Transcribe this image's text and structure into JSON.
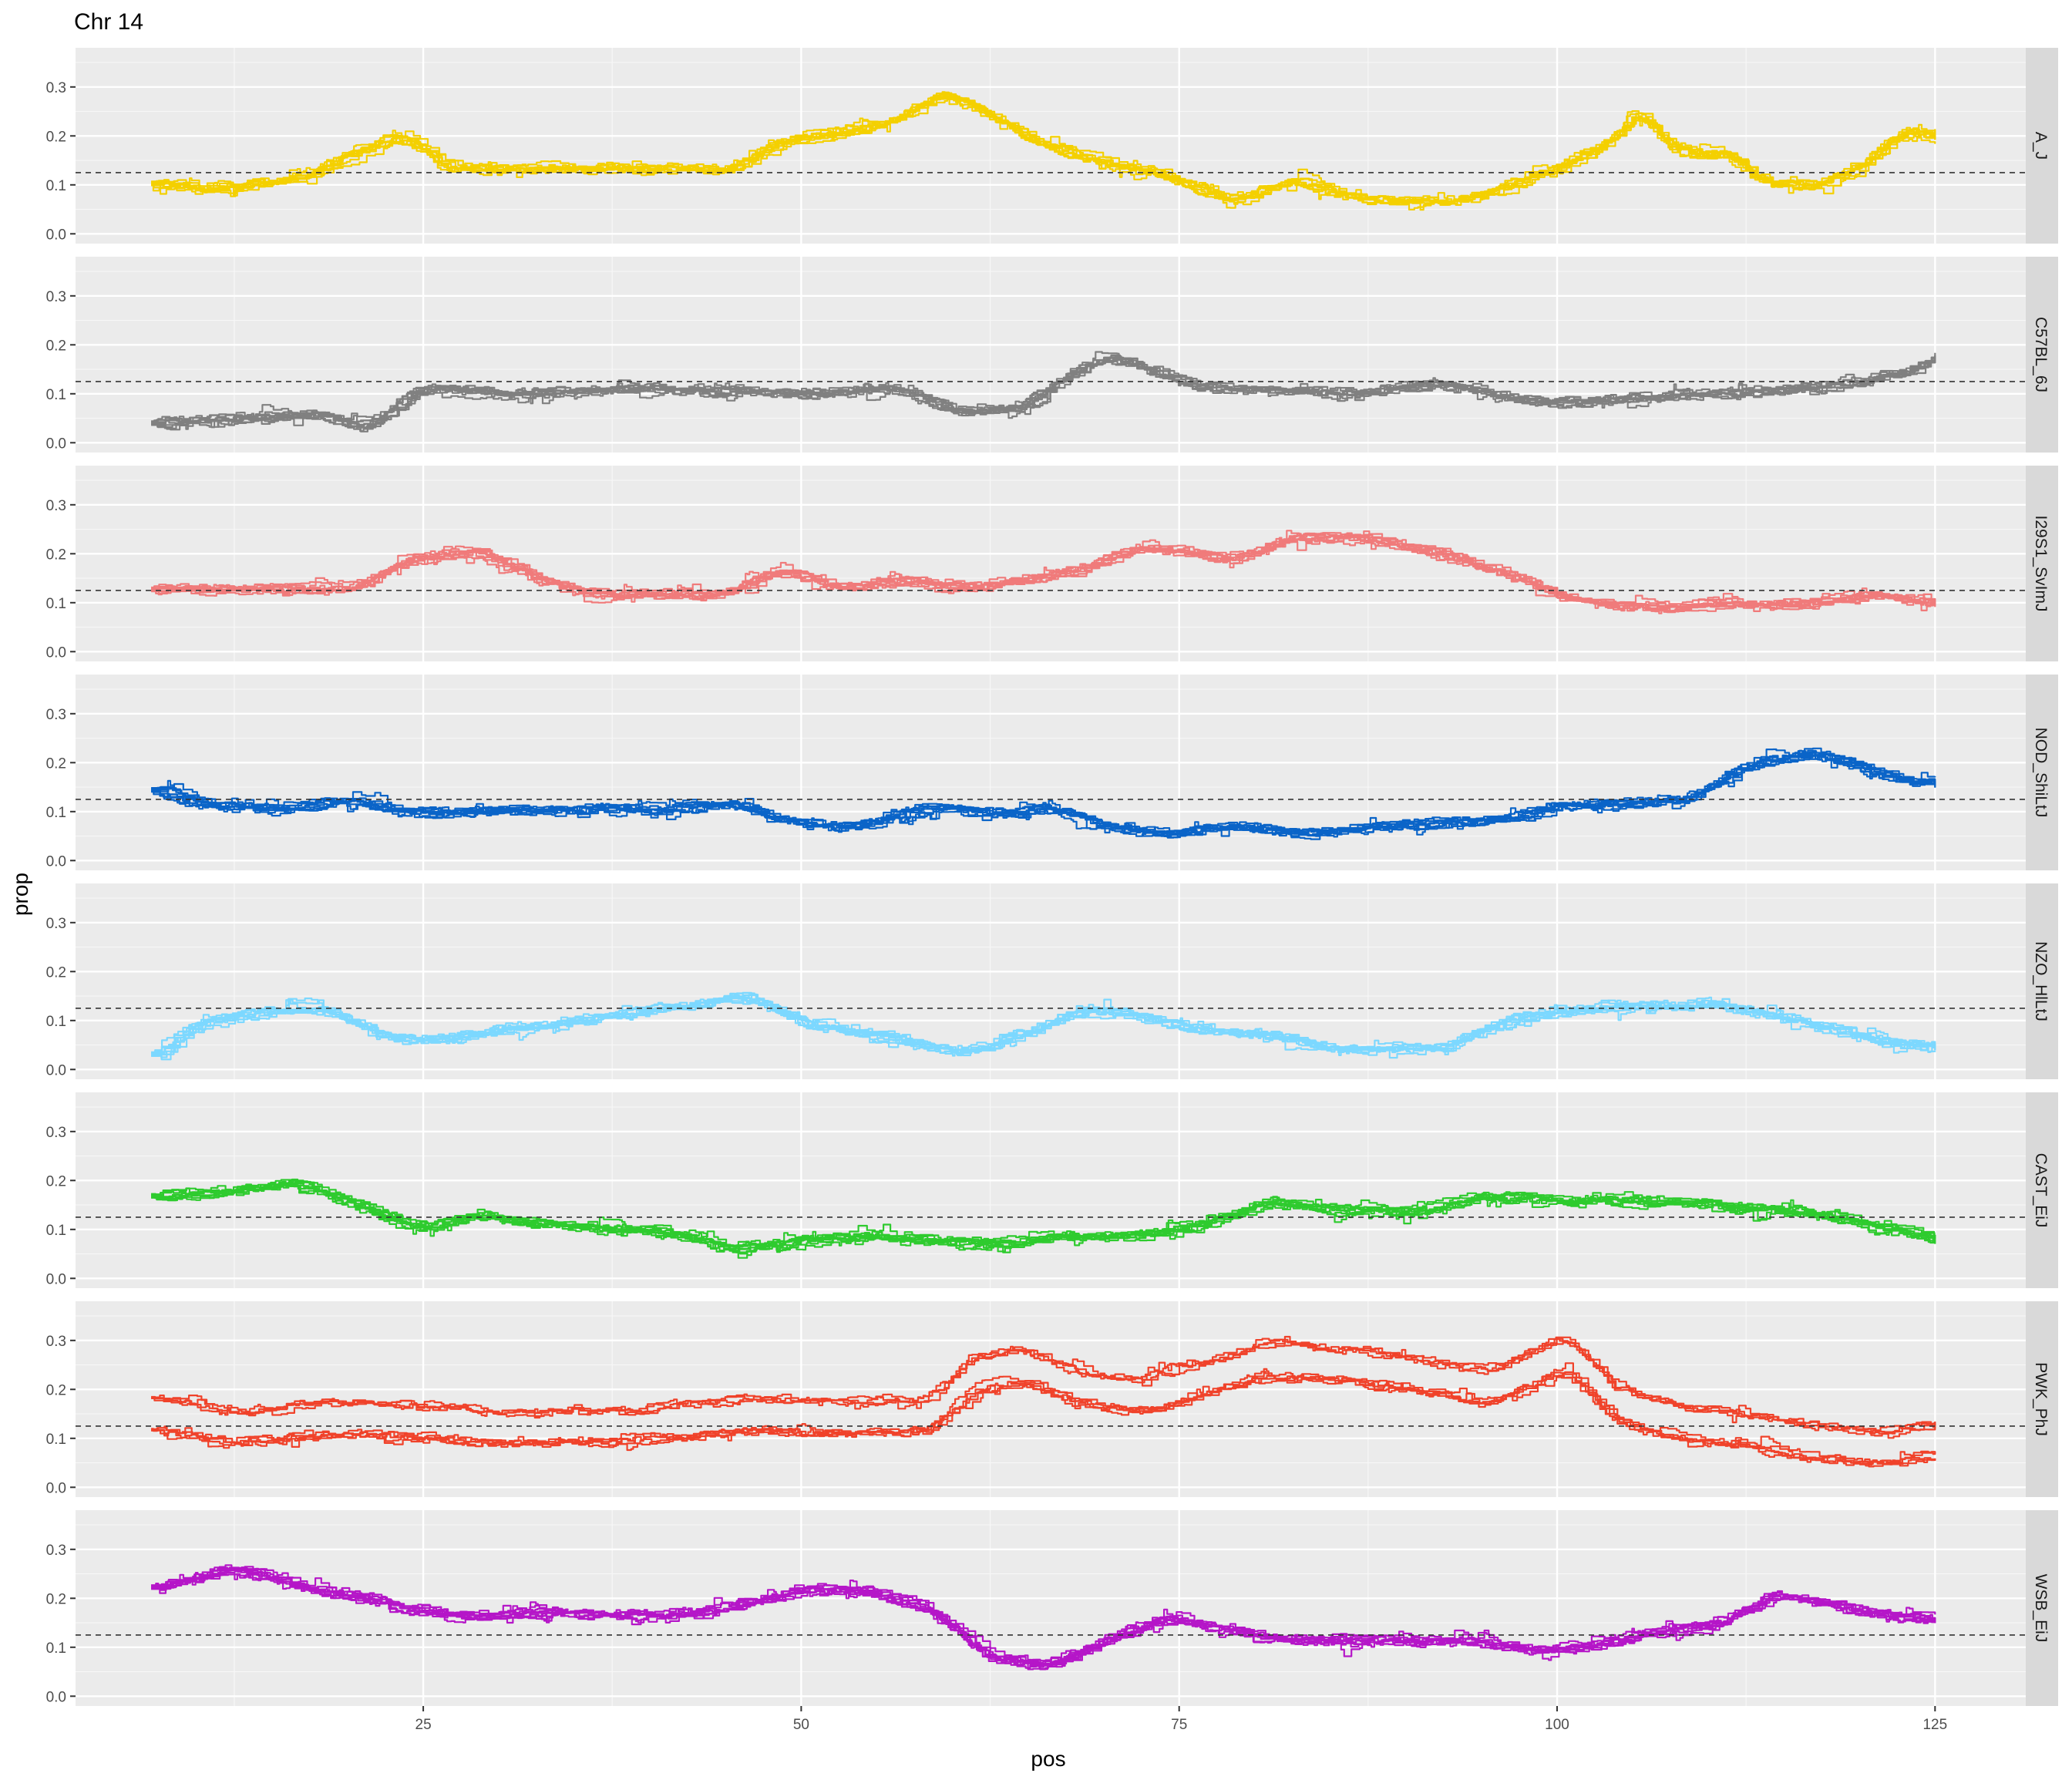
{
  "chart_data": {
    "type": "line",
    "title": "Chr 14",
    "xlabel": "pos",
    "ylabel": "prop",
    "xlim": [
      2,
      131
    ],
    "ylim": [
      -0.02,
      0.38
    ],
    "x_ticks": [
      25,
      50,
      75,
      100,
      125
    ],
    "x_tick_labels": [
      "25",
      "50",
      "75",
      "100",
      "125"
    ],
    "y_ticks": [
      0.0,
      0.1,
      0.2,
      0.3
    ],
    "y_tick_labels": [
      "0.0",
      "0.1",
      "0.2",
      "0.3"
    ],
    "reference_line": {
      "y": 0.125,
      "style": "dashed"
    },
    "grid": true,
    "panel_background": "#ebebeb",
    "lines_per_panel": 9,
    "x_range_of_data": [
      7,
      125
    ],
    "facets": [
      {
        "strain": "A_J",
        "color": "#f4d000",
        "profile": [
          [
            7,
            0.09
          ],
          [
            10,
            0.08
          ],
          [
            15,
            0.09
          ],
          [
            20,
            0.15
          ],
          [
            23,
            0.19
          ],
          [
            26,
            0.12
          ],
          [
            30,
            0.12
          ],
          [
            40,
            0.12
          ],
          [
            45,
            0.12
          ],
          [
            48,
            0.18
          ],
          [
            55,
            0.21
          ],
          [
            59,
            0.28
          ],
          [
            62,
            0.22
          ],
          [
            66,
            0.16
          ],
          [
            70,
            0.13
          ],
          [
            74,
            0.1
          ],
          [
            78,
            0.05
          ],
          [
            82,
            0.1
          ],
          [
            86,
            0.06
          ],
          [
            92,
            0.05
          ],
          [
            96,
            0.08
          ],
          [
            100,
            0.13
          ],
          [
            103,
            0.18
          ],
          [
            105,
            0.25
          ],
          [
            107,
            0.15
          ],
          [
            111,
            0.15
          ],
          [
            113,
            0.08
          ],
          [
            117,
            0.09
          ],
          [
            120,
            0.13
          ],
          [
            122,
            0.2
          ],
          [
            125,
            0.18
          ]
        ]
      },
      {
        "strain": "C57BL_6J",
        "color": "#808080",
        "profile": [
          [
            7,
            0.07
          ],
          [
            12,
            0.08
          ],
          [
            17,
            0.09
          ],
          [
            21,
            0.06
          ],
          [
            24,
            0.14
          ],
          [
            27,
            0.14
          ],
          [
            30,
            0.13
          ],
          [
            40,
            0.14
          ],
          [
            50,
            0.13
          ],
          [
            56,
            0.14
          ],
          [
            60,
            0.09
          ],
          [
            64,
            0.1
          ],
          [
            67,
            0.17
          ],
          [
            70,
            0.21
          ],
          [
            73,
            0.17
          ],
          [
            76,
            0.14
          ],
          [
            80,
            0.14
          ],
          [
            85,
            0.13
          ],
          [
            92,
            0.15
          ],
          [
            96,
            0.12
          ],
          [
            100,
            0.11
          ],
          [
            104,
            0.12
          ],
          [
            110,
            0.13
          ],
          [
            115,
            0.14
          ],
          [
            118,
            0.15
          ],
          [
            122,
            0.17
          ],
          [
            125,
            0.21
          ]
        ]
      },
      {
        "strain": "I29S1_SvImJ",
        "color": "#f07b7b",
        "profile": [
          [
            7,
            0.13
          ],
          [
            15,
            0.13
          ],
          [
            20,
            0.13
          ],
          [
            23,
            0.19
          ],
          [
            28,
            0.21
          ],
          [
            32,
            0.15
          ],
          [
            36,
            0.12
          ],
          [
            44,
            0.12
          ],
          [
            48,
            0.17
          ],
          [
            52,
            0.13
          ],
          [
            56,
            0.15
          ],
          [
            60,
            0.13
          ],
          [
            68,
            0.17
          ],
          [
            72,
            0.22
          ],
          [
            78,
            0.19
          ],
          [
            82,
            0.24
          ],
          [
            88,
            0.23
          ],
          [
            92,
            0.2
          ],
          [
            96,
            0.16
          ],
          [
            100,
            0.11
          ],
          [
            106,
            0.09
          ],
          [
            110,
            0.1
          ],
          [
            116,
            0.1
          ],
          [
            120,
            0.12
          ],
          [
            125,
            0.1
          ]
        ]
      },
      {
        "strain": "NOD_ShiLtJ",
        "color": "#0a64c8",
        "profile": [
          [
            7,
            0.12
          ],
          [
            10,
            0.09
          ],
          [
            15,
            0.08
          ],
          [
            20,
            0.1
          ],
          [
            24,
            0.07
          ],
          [
            30,
            0.08
          ],
          [
            40,
            0.08
          ],
          [
            45,
            0.09
          ],
          [
            48,
            0.06
          ],
          [
            52,
            0.04
          ],
          [
            55,
            0.06
          ],
          [
            58,
            0.09
          ],
          [
            62,
            0.07
          ],
          [
            66,
            0.08
          ],
          [
            70,
            0.04
          ],
          [
            74,
            0.03
          ],
          [
            78,
            0.05
          ],
          [
            82,
            0.03
          ],
          [
            90,
            0.05
          ],
          [
            96,
            0.06
          ],
          [
            100,
            0.09
          ],
          [
            104,
            0.09
          ],
          [
            108,
            0.1
          ],
          [
            112,
            0.17
          ],
          [
            116,
            0.2
          ],
          [
            119,
            0.17
          ],
          [
            122,
            0.14
          ],
          [
            125,
            0.13
          ]
        ]
      },
      {
        "strain": "NZO_HlLtJ",
        "color": "#7cd8ff",
        "profile": [
          [
            7,
            0.05
          ],
          [
            10,
            0.12
          ],
          [
            15,
            0.14
          ],
          [
            18,
            0.14
          ],
          [
            22,
            0.08
          ],
          [
            26,
            0.08
          ],
          [
            30,
            0.1
          ],
          [
            35,
            0.12
          ],
          [
            42,
            0.15
          ],
          [
            46,
            0.17
          ],
          [
            50,
            0.11
          ],
          [
            56,
            0.08
          ],
          [
            60,
            0.05
          ],
          [
            64,
            0.09
          ],
          [
            68,
            0.14
          ],
          [
            71,
            0.13
          ],
          [
            75,
            0.1
          ],
          [
            80,
            0.09
          ],
          [
            85,
            0.06
          ],
          [
            92,
            0.06
          ],
          [
            96,
            0.12
          ],
          [
            100,
            0.14
          ],
          [
            105,
            0.15
          ],
          [
            110,
            0.15
          ],
          [
            115,
            0.12
          ],
          [
            120,
            0.08
          ],
          [
            125,
            0.06
          ]
        ]
      },
      {
        "strain": "CAST_EiJ",
        "color": "#2ecb2e",
        "profile": [
          [
            7,
            0.16
          ],
          [
            12,
            0.17
          ],
          [
            16,
            0.19
          ],
          [
            20,
            0.14
          ],
          [
            24,
            0.09
          ],
          [
            28,
            0.12
          ],
          [
            32,
            0.1
          ],
          [
            40,
            0.09
          ],
          [
            45,
            0.05
          ],
          [
            50,
            0.07
          ],
          [
            55,
            0.08
          ],
          [
            60,
            0.06
          ],
          [
            65,
            0.07
          ],
          [
            72,
            0.08
          ],
          [
            76,
            0.1
          ],
          [
            80,
            0.15
          ],
          [
            85,
            0.13
          ],
          [
            90,
            0.13
          ],
          [
            95,
            0.16
          ],
          [
            100,
            0.15
          ],
          [
            105,
            0.15
          ],
          [
            110,
            0.14
          ],
          [
            115,
            0.13
          ],
          [
            120,
            0.1
          ],
          [
            125,
            0.07
          ]
        ]
      },
      {
        "strain": "PWK_PhJ",
        "color": "#f0422a",
        "profile": [
          [
            7,
            0.15
          ],
          [
            12,
            0.12
          ],
          [
            17,
            0.14
          ],
          [
            22,
            0.14
          ],
          [
            26,
            0.13
          ],
          [
            30,
            0.12
          ],
          [
            40,
            0.13
          ],
          [
            46,
            0.15
          ],
          [
            52,
            0.14
          ],
          [
            58,
            0.15
          ],
          [
            61,
            0.24
          ],
          [
            64,
            0.25
          ],
          [
            68,
            0.2
          ],
          [
            72,
            0.19
          ],
          [
            76,
            0.22
          ],
          [
            80,
            0.26
          ],
          [
            85,
            0.25
          ],
          [
            90,
            0.23
          ],
          [
            95,
            0.2
          ],
          [
            100,
            0.28
          ],
          [
            103,
            0.17
          ],
          [
            106,
            0.14
          ],
          [
            110,
            0.12
          ],
          [
            115,
            0.1
          ],
          [
            120,
            0.08
          ],
          [
            125,
            0.1
          ]
        ]
      },
      {
        "strain": "WSB_EiJ",
        "color": "#b516c8",
        "profile": [
          [
            7,
            0.23
          ],
          [
            12,
            0.27
          ],
          [
            16,
            0.23
          ],
          [
            20,
            0.21
          ],
          [
            24,
            0.18
          ],
          [
            28,
            0.17
          ],
          [
            32,
            0.18
          ],
          [
            40,
            0.17
          ],
          [
            45,
            0.19
          ],
          [
            50,
            0.23
          ],
          [
            54,
            0.22
          ],
          [
            58,
            0.18
          ],
          [
            62,
            0.08
          ],
          [
            66,
            0.07
          ],
          [
            70,
            0.13
          ],
          [
            74,
            0.17
          ],
          [
            78,
            0.14
          ],
          [
            82,
            0.12
          ],
          [
            88,
            0.12
          ],
          [
            94,
            0.12
          ],
          [
            98,
            0.1
          ],
          [
            102,
            0.11
          ],
          [
            106,
            0.14
          ],
          [
            110,
            0.15
          ],
          [
            114,
            0.22
          ],
          [
            118,
            0.19
          ],
          [
            122,
            0.17
          ],
          [
            125,
            0.16
          ]
        ]
      }
    ]
  }
}
